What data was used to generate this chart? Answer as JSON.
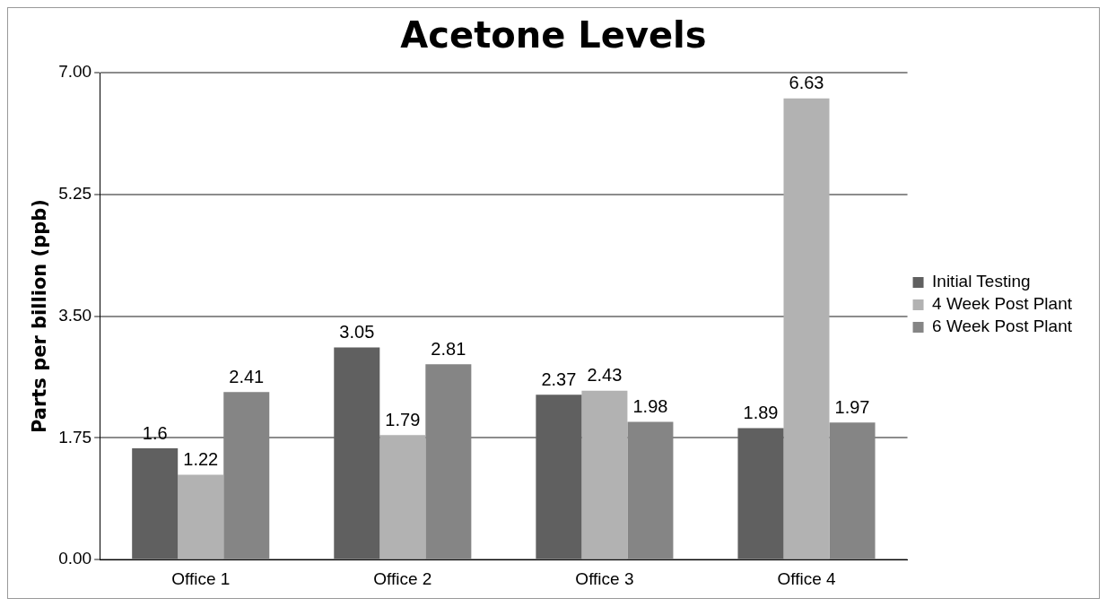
{
  "chart_data": {
    "type": "bar",
    "title": "Acetone Levels",
    "ylabel": "Parts per billion (ppb)",
    "categories": [
      "Office 1",
      "Office 2",
      "Office 3",
      "Office 4"
    ],
    "series": [
      {
        "name": "Initial Testing",
        "color": "#606060",
        "values": [
          1.6,
          3.05,
          2.37,
          1.89
        ]
      },
      {
        "name": "4 Week Post Plant",
        "color": "#b2b2b2",
        "values": [
          1.22,
          1.79,
          2.43,
          6.63
        ]
      },
      {
        "name": "6 Week Post Plant",
        "color": "#858585",
        "values": [
          2.41,
          2.81,
          1.98,
          1.97
        ]
      }
    ],
    "ylim": [
      0,
      7
    ],
    "yticks": [
      {
        "value": 0,
        "label": "0.00"
      },
      {
        "value": 1.75,
        "label": "1.75"
      },
      {
        "value": 3.5,
        "label": "3.50"
      },
      {
        "value": 5.25,
        "label": "5.25"
      },
      {
        "value": 7,
        "label": "7.00"
      }
    ],
    "grid": "y",
    "legend": "right",
    "data_labels": true
  }
}
